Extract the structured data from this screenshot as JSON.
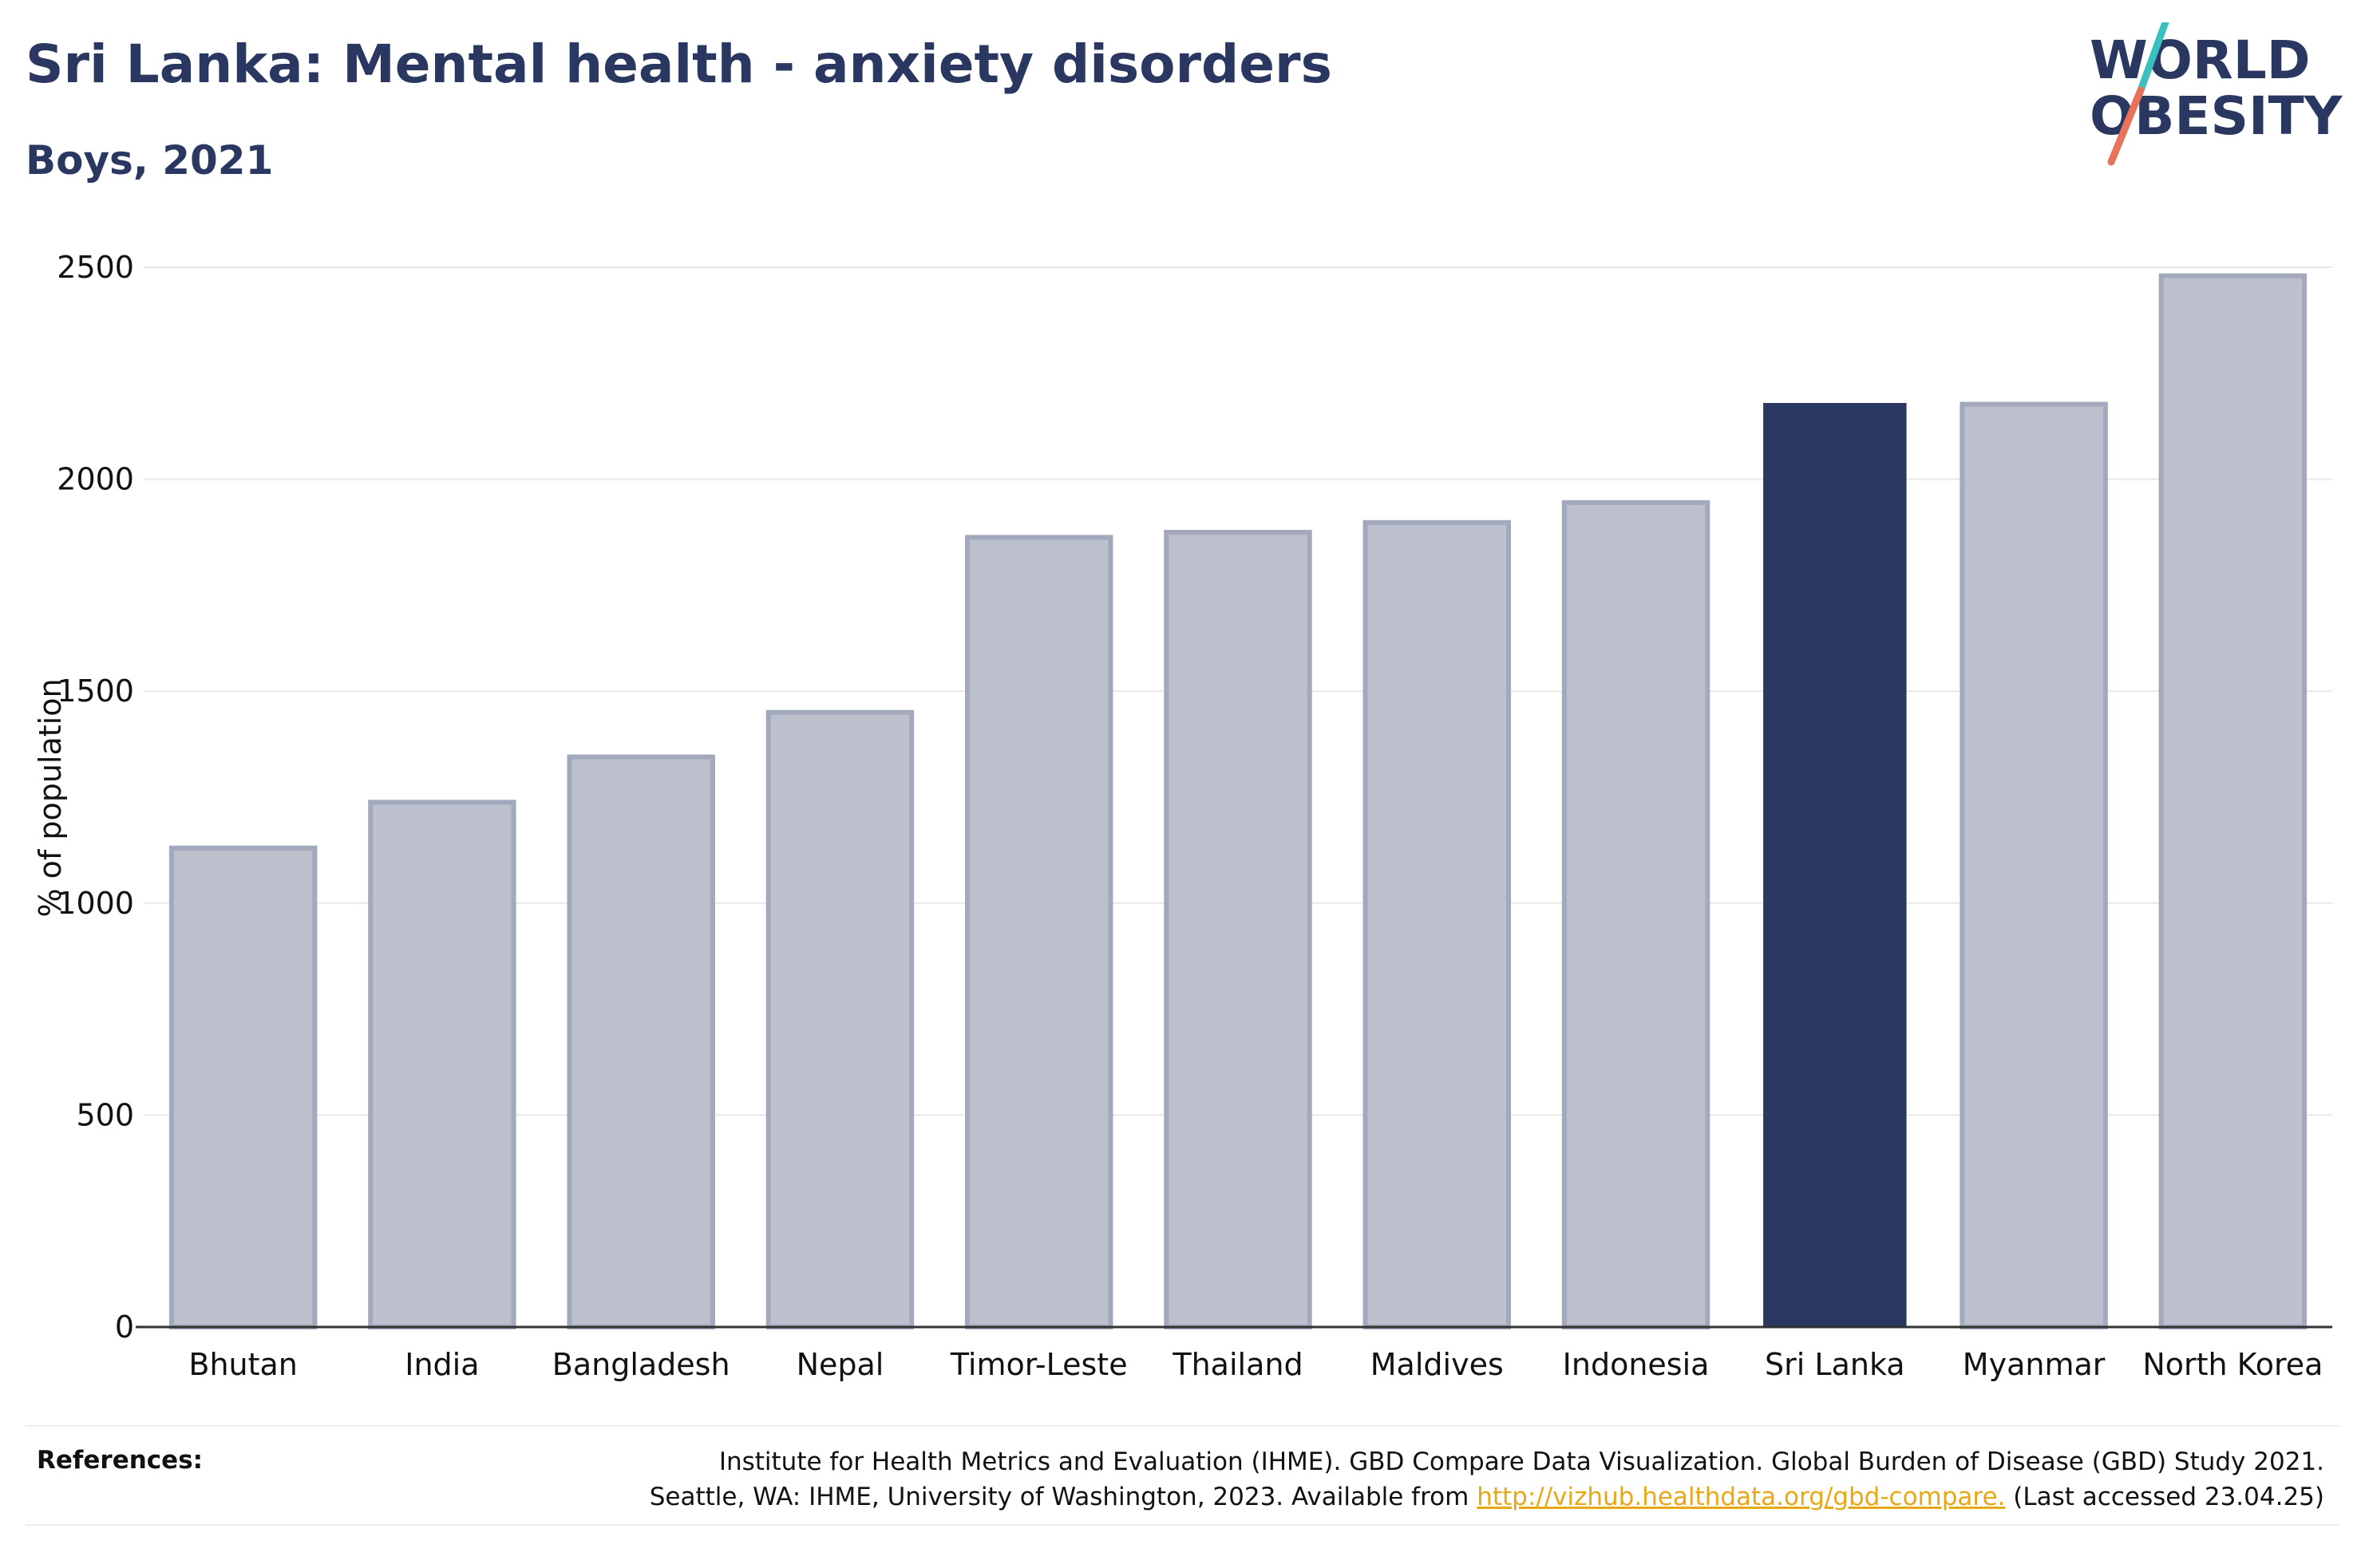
{
  "header": {
    "title": "Sri Lanka: Mental health - anxiety disorders",
    "subtitle": "Boys, 2021"
  },
  "logo": {
    "line1": "WORLD",
    "line2": "OBESITY",
    "accent_teal": "#3bbfbf",
    "accent_coral": "#e8735a",
    "text_color": "#2a3760"
  },
  "colors": {
    "highlight": "#2a3760",
    "bar_fill": "#bcc0cd",
    "bar_stroke": "#a3a9bc",
    "grid": "#e8e8e8"
  },
  "chart_data": {
    "type": "bar",
    "categories": [
      "Bhutan",
      "India",
      "Bangladesh",
      "Nepal",
      "Timor-Leste",
      "Thailand",
      "Maldives",
      "Indonesia",
      "Sri Lanka",
      "Myanmar",
      "North Korea"
    ],
    "values": [
      1130,
      1238,
      1345,
      1450,
      1863,
      1875,
      1898,
      1945,
      2180,
      2177,
      2480
    ],
    "highlight": "Sri Lanka",
    "ylabel": "% of population",
    "ylim": [
      0,
      2500
    ],
    "yticks": [
      0,
      500,
      1000,
      1500,
      2000,
      2500
    ],
    "grid": true
  },
  "references": {
    "label": "References:",
    "text_line1": "Institute for Health Metrics and Evaluation (IHME). GBD Compare Data Visualization. Global Burden of Disease (GBD) Study 2021.",
    "text_line2_prefix": "Seattle, WA: IHME, University of Washington, 2023. Available from ",
    "link": "http://vizhub.healthdata.org/gbd-compare.",
    "text_line2_suffix": " (Last accessed 23.04.25)"
  }
}
